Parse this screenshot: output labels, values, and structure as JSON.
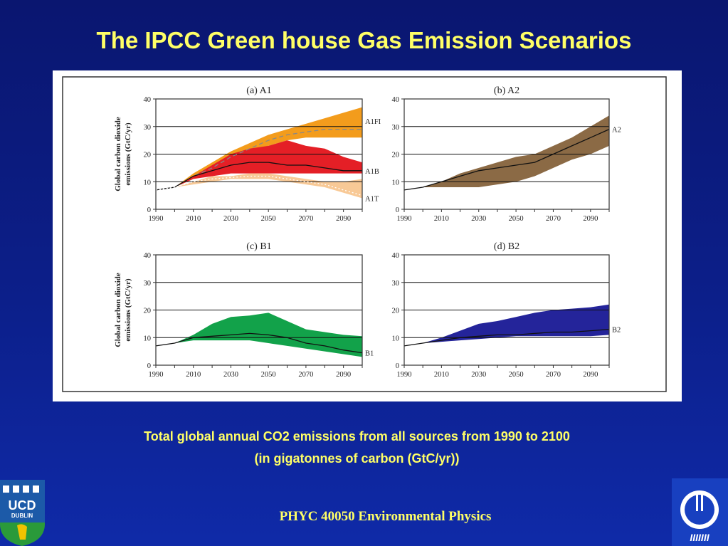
{
  "slide": {
    "title": "The IPCC Green house Gas Emission Scenarios",
    "caption_line1": "Total global annual CO2 emissions from all sources from 1990 to 2100",
    "caption_line2": "(in gigatonnes of carbon (GtC/yr))",
    "footer": "PHYC 40050 Environmental Physics",
    "logo_left_text_1": "UCD",
    "logo_left_text_2": "DUBLIN",
    "logo_right_text": "IIIIIII"
  },
  "colors": {
    "background": "#0c1f8a",
    "title": "#ffff66",
    "a1fi_band": "#f39c1c",
    "a1b_band": "#e41f26",
    "a1t_band": "#f8c996",
    "a2_band": "#8b6a45",
    "b1_band": "#12a24a",
    "b2_band": "#24249a"
  },
  "chart_data": [
    {
      "type": "area",
      "title": "(a) A1",
      "ylabel_line1": "Global carbon dioxide",
      "ylabel_line2": "emissions (GtC/yr)",
      "xlim": [
        1990,
        2100
      ],
      "ylim": [
        0,
        40
      ],
      "xticks": [
        1990,
        2010,
        2030,
        2050,
        2070,
        2090
      ],
      "yticks": [
        0,
        10,
        20,
        30,
        40
      ],
      "grid": "horizontal at 10, 20, 30",
      "series": [
        {
          "name": "A1FI",
          "color": "#f39c1c",
          "x": [
            1990,
            2000,
            2010,
            2020,
            2030,
            2040,
            2050,
            2060,
            2070,
            2080,
            2090,
            2100
          ],
          "upper": [
            7,
            8,
            13,
            17,
            21,
            24,
            27,
            29,
            31,
            33,
            35,
            37
          ],
          "lower": [
            7,
            8,
            11,
            14,
            17,
            21,
            23,
            25,
            26,
            26,
            26,
            26
          ],
          "central": [
            7,
            8,
            12,
            15,
            19,
            22,
            25,
            27,
            28,
            29,
            29,
            29
          ]
        },
        {
          "name": "A1B",
          "color": "#e41f26",
          "x": [
            1990,
            2000,
            2010,
            2020,
            2030,
            2040,
            2050,
            2060,
            2070,
            2080,
            2090,
            2100
          ],
          "upper": [
            7,
            8,
            12,
            16,
            20,
            22,
            23,
            25,
            23,
            22,
            19,
            17
          ],
          "lower": [
            7,
            8,
            11,
            12,
            13,
            13,
            13,
            13,
            13,
            13,
            13,
            13
          ],
          "central": [
            7,
            8,
            12,
            14,
            16,
            17,
            17,
            16,
            16,
            15,
            14,
            14
          ]
        },
        {
          "name": "A1T",
          "color": "#f8c996",
          "x": [
            1990,
            2000,
            2010,
            2020,
            2030,
            2040,
            2050,
            2060,
            2070,
            2080,
            2090,
            2100
          ],
          "upper": [
            7,
            8,
            10,
            12,
            12,
            13,
            13,
            12,
            11,
            10,
            10,
            11
          ],
          "lower": [
            7,
            8,
            9,
            10,
            11,
            11,
            11,
            10,
            9,
            8,
            6,
            4
          ],
          "central": [
            7,
            8,
            10,
            11,
            11.5,
            12,
            12,
            11,
            10,
            9,
            7,
            5
          ]
        }
      ]
    },
    {
      "type": "area",
      "title": "(b) A2",
      "xlim": [
        1990,
        2100
      ],
      "ylim": [
        0,
        40
      ],
      "xticks": [
        1990,
        2010,
        2030,
        2050,
        2070,
        2090
      ],
      "yticks": [
        0,
        10,
        20,
        30,
        40
      ],
      "series": [
        {
          "name": "A2",
          "color": "#8b6a45",
          "x": [
            1990,
            2000,
            2010,
            2020,
            2030,
            2040,
            2050,
            2060,
            2070,
            2080,
            2090,
            2100
          ],
          "upper": [
            7,
            8,
            10,
            13,
            15,
            17,
            19,
            20,
            23,
            26,
            30,
            34
          ],
          "lower": [
            7,
            8,
            8,
            8,
            8,
            9,
            10,
            12,
            15,
            18,
            20,
            23
          ],
          "central": [
            7,
            8,
            10,
            12,
            14,
            15,
            16,
            17,
            20,
            23,
            26,
            29
          ]
        }
      ]
    },
    {
      "type": "area",
      "title": "(c) B1",
      "ylabel_line1": "Global carbon dioxide",
      "ylabel_line2": "emissions (GtC/yr)",
      "xlim": [
        1990,
        2100
      ],
      "ylim": [
        0,
        40
      ],
      "xticks": [
        1990,
        2010,
        2030,
        2050,
        2070,
        2090
      ],
      "yticks": [
        0,
        10,
        20,
        30,
        40
      ],
      "series": [
        {
          "name": "B1",
          "color": "#12a24a",
          "x": [
            1990,
            2000,
            2010,
            2020,
            2030,
            2040,
            2050,
            2060,
            2070,
            2080,
            2090,
            2100
          ],
          "upper": [
            7,
            8,
            11,
            15,
            17.5,
            18,
            19,
            16,
            13,
            12,
            11,
            10.5
          ],
          "lower": [
            7,
            8,
            9,
            9,
            9,
            9,
            8,
            7,
            6,
            5,
            4,
            3
          ],
          "central": [
            7,
            8,
            10,
            10.5,
            11,
            11.5,
            11,
            10,
            8,
            7,
            5.5,
            4.5
          ]
        }
      ]
    },
    {
      "type": "area",
      "title": "(d) B2",
      "xlim": [
        1990,
        2100
      ],
      "ylim": [
        0,
        40
      ],
      "xticks": [
        1990,
        2010,
        2030,
        2050,
        2070,
        2090
      ],
      "yticks": [
        0,
        10,
        20,
        30,
        40
      ],
      "series": [
        {
          "name": "B2",
          "color": "#24249a",
          "x": [
            1990,
            2000,
            2010,
            2020,
            2030,
            2040,
            2050,
            2060,
            2070,
            2080,
            2090,
            2100
          ],
          "upper": [
            7,
            8,
            10,
            12.5,
            15,
            16,
            17.5,
            19,
            20,
            20.5,
            21,
            22
          ],
          "lower": [
            7,
            8,
            8.5,
            9,
            9.5,
            10,
            10.5,
            10.5,
            10.5,
            10.5,
            10.5,
            11
          ],
          "central": [
            7,
            8,
            9,
            10,
            10.5,
            11,
            11,
            11.5,
            12,
            12,
            12.5,
            13
          ]
        }
      ]
    }
  ]
}
